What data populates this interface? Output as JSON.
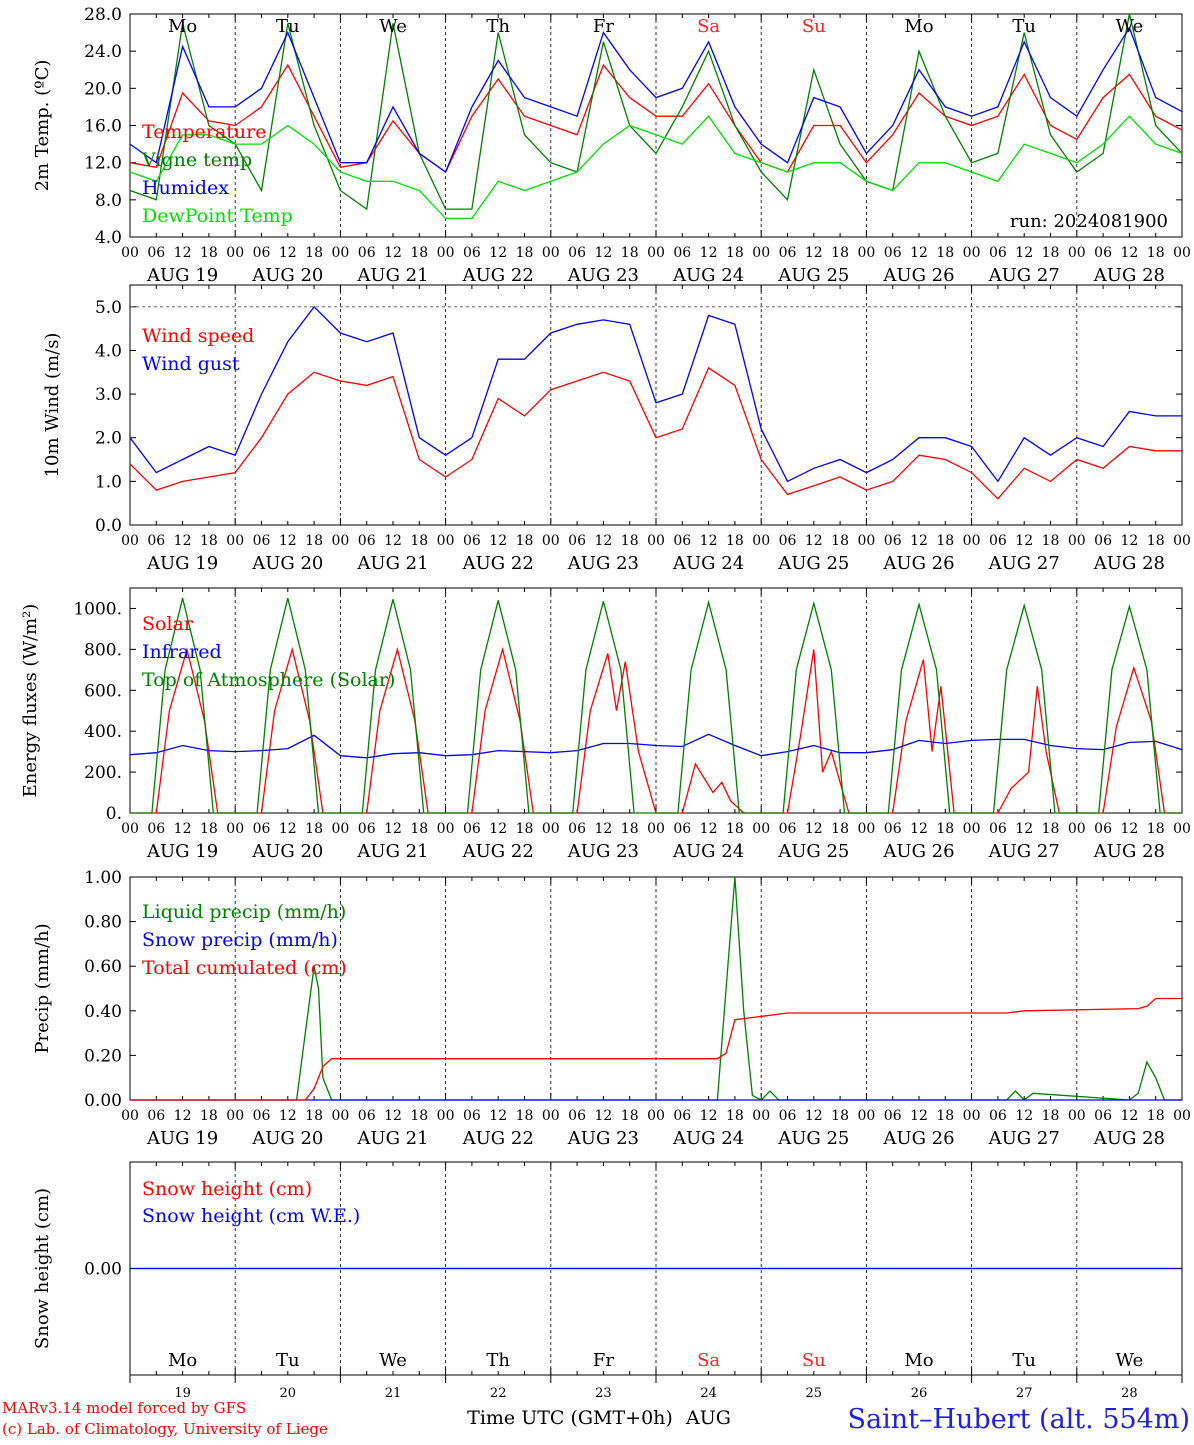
{
  "x_axis": {
    "hour_ticks": [
      "00",
      "06",
      "12",
      "18"
    ],
    "dates": [
      "AUG 19",
      "AUG 20",
      "AUG 21",
      "AUG 22",
      "AUG 23",
      "AUG 24",
      "AUG 25",
      "AUG 26",
      "AUG 27",
      "AUG 28"
    ],
    "weekdays": [
      "Mo",
      "Tu",
      "We",
      "Th",
      "Fr",
      "Sa",
      "Su",
      "Mo",
      "Tu",
      "We"
    ],
    "weekend_color": "#ff2020",
    "weekday_color": "#000000",
    "day_numbers": [
      "19",
      "20",
      "21",
      "22",
      "23",
      "24",
      "25",
      "26",
      "27",
      "28"
    ],
    "month": "AUG",
    "title": "Time UTC (GMT+0h)"
  },
  "footer": {
    "credit_line1": "MARv3.14 model forced by GFS",
    "credit_line2": "(c) Lab. of Climatology, University of Liege",
    "station": "Saint–Hubert (alt. 554m)",
    "credit_color": "#ff0000",
    "station_color": "#2020e0"
  },
  "chart_data": [
    {
      "type": "line",
      "ylabel": "2m Temp. (ºC)",
      "ylim": [
        4.0,
        28.0
      ],
      "yticks": [
        "4.0",
        "8.0",
        "12.0",
        "16.0",
        "20.0",
        "24.0",
        "28.0"
      ],
      "annotation": "run: 2024081900",
      "x_unit": "hours since AUG 19 00 UTC",
      "series": [
        {
          "name": "Temperature",
          "color": "#ff0000",
          "x": [
            0,
            6,
            12,
            18,
            24,
            30,
            36,
            42,
            48,
            54,
            60,
            66,
            72,
            78,
            84,
            90,
            96,
            102,
            108,
            114,
            120,
            126,
            132,
            138,
            144,
            150,
            156,
            162,
            168,
            174,
            180,
            186,
            192,
            198,
            204,
            210,
            216,
            222,
            228,
            234,
            240
          ],
          "y": [
            12,
            11.5,
            19.5,
            16.5,
            16,
            18,
            22.5,
            17,
            11.5,
            12,
            16.5,
            13,
            11,
            17,
            21,
            17,
            16,
            15,
            22.5,
            19,
            17,
            17,
            20.5,
            16,
            12,
            11,
            16,
            16,
            12,
            15,
            19.5,
            17,
            16,
            17,
            21.5,
            16,
            14.5,
            19,
            21.5,
            17,
            15.5
          ]
        },
        {
          "name": "Vigne temp",
          "color": "#008000",
          "x": [
            0,
            6,
            12,
            18,
            24,
            30,
            36,
            42,
            48,
            54,
            60,
            66,
            72,
            78,
            84,
            90,
            96,
            102,
            108,
            114,
            120,
            126,
            132,
            138,
            144,
            150,
            156,
            162,
            168,
            174,
            180,
            186,
            192,
            198,
            204,
            210,
            216,
            222,
            228,
            234,
            240
          ],
          "y": [
            9,
            8,
            27,
            16,
            14,
            9,
            27,
            16,
            9,
            7,
            27,
            13,
            7,
            7,
            26,
            15,
            12,
            11,
            25,
            16,
            13,
            18,
            24,
            16,
            11,
            8,
            22,
            14,
            10,
            9,
            24,
            17,
            12,
            13,
            26,
            15,
            11,
            13,
            28,
            16,
            13
          ]
        },
        {
          "name": "Humidex",
          "color": "#0000ff",
          "x": [
            0,
            6,
            12,
            18,
            24,
            30,
            36,
            42,
            48,
            54,
            60,
            66,
            72,
            78,
            84,
            90,
            96,
            102,
            108,
            114,
            120,
            126,
            132,
            138,
            144,
            150,
            156,
            162,
            168,
            174,
            180,
            186,
            192,
            198,
            204,
            210,
            216,
            222,
            228,
            234,
            240
          ],
          "y": [
            14,
            12,
            24.5,
            18,
            18,
            20,
            26,
            19,
            12,
            12,
            18,
            13,
            11,
            18,
            23,
            19,
            18,
            17,
            26,
            22,
            19,
            20,
            25,
            18,
            14,
            12,
            19,
            18,
            13,
            16,
            22,
            18,
            17,
            18,
            25,
            19,
            17,
            22,
            26.5,
            19,
            17.5
          ]
        },
        {
          "name": "DewPoint Temp",
          "color": "#00e000",
          "x": [
            0,
            6,
            12,
            18,
            24,
            30,
            36,
            42,
            48,
            54,
            60,
            66,
            72,
            78,
            84,
            90,
            96,
            102,
            108,
            114,
            120,
            126,
            132,
            138,
            144,
            150,
            156,
            162,
            168,
            174,
            180,
            186,
            192,
            198,
            204,
            210,
            216,
            222,
            228,
            234,
            240
          ],
          "y": [
            11,
            10,
            15,
            15,
            14,
            14,
            16,
            14,
            11,
            10,
            10,
            9,
            6,
            6,
            10,
            9,
            10,
            11,
            14,
            16,
            15,
            14,
            17,
            13,
            12,
            11,
            12,
            12,
            10,
            9,
            12,
            12,
            11,
            10,
            14,
            13,
            12,
            14,
            17,
            14,
            13
          ]
        }
      ]
    },
    {
      "type": "line",
      "ylabel": "10m Wind (m/s)",
      "ylim": [
        0.0,
        5.5
      ],
      "yticks": [
        "0.0",
        "1.0",
        "2.0",
        "3.0",
        "4.0",
        "5.0"
      ],
      "dashed_reference": 5.0,
      "x_unit": "hours since AUG 19 00 UTC",
      "series": [
        {
          "name": "Wind speed",
          "color": "#ff0000",
          "x": [
            0,
            6,
            12,
            18,
            24,
            30,
            36,
            42,
            48,
            54,
            60,
            66,
            72,
            78,
            84,
            90,
            96,
            102,
            108,
            114,
            120,
            126,
            132,
            138,
            144,
            150,
            156,
            162,
            168,
            174,
            180,
            186,
            192,
            198,
            204,
            210,
            216,
            222,
            228,
            234,
            240
          ],
          "y": [
            1.4,
            0.8,
            1.0,
            1.1,
            1.2,
            2.0,
            3.0,
            3.5,
            3.3,
            3.2,
            3.4,
            1.5,
            1.1,
            1.5,
            2.9,
            2.5,
            3.1,
            3.3,
            3.5,
            3.3,
            2.0,
            2.2,
            3.6,
            3.2,
            1.5,
            0.7,
            0.9,
            1.1,
            0.8,
            1.0,
            1.6,
            1.5,
            1.2,
            0.6,
            1.3,
            1.0,
            1.5,
            1.3,
            1.8,
            1.7,
            1.7
          ]
        },
        {
          "name": "Wind gust",
          "color": "#0000ff",
          "x": [
            0,
            6,
            12,
            18,
            24,
            30,
            36,
            42,
            48,
            54,
            60,
            66,
            72,
            78,
            84,
            90,
            96,
            102,
            108,
            114,
            120,
            126,
            132,
            138,
            144,
            150,
            156,
            162,
            168,
            174,
            180,
            186,
            192,
            198,
            204,
            210,
            216,
            222,
            228,
            234,
            240
          ],
          "y": [
            2.0,
            1.2,
            1.5,
            1.8,
            1.6,
            3.0,
            4.2,
            5.0,
            4.4,
            4.2,
            4.4,
            2.0,
            1.6,
            2.0,
            3.8,
            3.8,
            4.4,
            4.6,
            4.7,
            4.6,
            2.8,
            3.0,
            4.8,
            4.6,
            2.2,
            1.0,
            1.3,
            1.5,
            1.2,
            1.5,
            2.0,
            2.0,
            1.8,
            1.0,
            2.0,
            1.6,
            2.0,
            1.8,
            2.6,
            2.5,
            2.5
          ]
        }
      ]
    },
    {
      "type": "line",
      "ylabel": "Energy fluxes (W/m²)",
      "ylim": [
        0,
        1100
      ],
      "yticks": [
        "0.",
        "200.",
        "400.",
        "600.",
        "800.",
        "1000."
      ],
      "x_unit": "hours since AUG 19 00 UTC",
      "series": [
        {
          "name": "Solar",
          "color": "#ff0000",
          "x": [
            0,
            6,
            9,
            13,
            17,
            20,
            24,
            30,
            33,
            37,
            41,
            44,
            48,
            54,
            57,
            61,
            65,
            68,
            72,
            78,
            81,
            85,
            89,
            92,
            96,
            102,
            105,
            109,
            111,
            113,
            116,
            120,
            126,
            129,
            133,
            135,
            137,
            140,
            144,
            150,
            153,
            156,
            158,
            160,
            164,
            168,
            174,
            177,
            181,
            183,
            185,
            188,
            192,
            198,
            201,
            205,
            207,
            209,
            212,
            216,
            222,
            225,
            229,
            233,
            236,
            240
          ],
          "y": [
            0,
            0,
            500,
            800,
            450,
            0,
            0,
            0,
            500,
            800,
            450,
            0,
            0,
            0,
            500,
            800,
            450,
            0,
            0,
            0,
            500,
            800,
            450,
            0,
            0,
            0,
            500,
            780,
            500,
            740,
            300,
            0,
            0,
            240,
            100,
            150,
            60,
            0,
            0,
            0,
            380,
            800,
            200,
            300,
            0,
            0,
            0,
            450,
            750,
            300,
            620,
            0,
            0,
            0,
            120,
            200,
            620,
            300,
            0,
            0,
            0,
            420,
            710,
            450,
            0,
            0
          ]
        },
        {
          "name": "Infrared",
          "color": "#0000ff",
          "x": [
            0,
            6,
            12,
            18,
            24,
            30,
            36,
            42,
            48,
            54,
            60,
            66,
            72,
            78,
            84,
            90,
            96,
            102,
            108,
            114,
            120,
            126,
            132,
            138,
            144,
            150,
            156,
            162,
            168,
            174,
            180,
            186,
            192,
            198,
            204,
            210,
            216,
            222,
            228,
            234,
            240
          ],
          "y": [
            285,
            295,
            330,
            305,
            300,
            305,
            315,
            380,
            280,
            270,
            290,
            295,
            280,
            285,
            305,
            300,
            295,
            305,
            340,
            340,
            330,
            325,
            385,
            330,
            280,
            300,
            330,
            295,
            295,
            310,
            355,
            340,
            355,
            360,
            360,
            330,
            315,
            310,
            345,
            350,
            310
          ]
        },
        {
          "name": "Top of Atmosphere (Solar)",
          "color": "#008000",
          "x": [
            0,
            5,
            8,
            12,
            16,
            19,
            24,
            29,
            32,
            36,
            40,
            43,
            48,
            53,
            56,
            60,
            64,
            67,
            72,
            77,
            80,
            84,
            88,
            91,
            96,
            101,
            104,
            108,
            112,
            115,
            120,
            125,
            128,
            132,
            136,
            139,
            144,
            149,
            152,
            156,
            160,
            163,
            168,
            173,
            176,
            180,
            184,
            187,
            192,
            197,
            200,
            204,
            208,
            211,
            216,
            221,
            224,
            228,
            232,
            235,
            240
          ],
          "y": [
            0,
            0,
            700,
            1050,
            700,
            0,
            0,
            0,
            700,
            1050,
            700,
            0,
            0,
            0,
            700,
            1045,
            700,
            0,
            0,
            0,
            700,
            1040,
            700,
            0,
            0,
            0,
            700,
            1035,
            700,
            0,
            0,
            0,
            700,
            1030,
            700,
            0,
            0,
            0,
            700,
            1025,
            700,
            0,
            0,
            0,
            700,
            1020,
            700,
            0,
            0,
            0,
            700,
            1015,
            700,
            0,
            0,
            0,
            700,
            1010,
            700,
            0,
            0
          ]
        }
      ]
    },
    {
      "type": "line",
      "ylabel": "Precip (mm/h)",
      "ylim": [
        0.0,
        1.0
      ],
      "yticks": [
        "0.00",
        "0.20",
        "0.40",
        "0.60",
        "0.80",
        "1.00"
      ],
      "x_unit": "hours since AUG 19 00 UTC",
      "series": [
        {
          "name": "Liquid precip (mm/h)",
          "color": "#008000",
          "x": [
            0,
            38,
            40,
            42,
            43,
            44,
            46,
            134,
            136,
            138,
            140,
            142,
            144,
            146,
            148,
            150,
            200,
            202,
            204,
            206,
            228,
            230,
            232,
            234,
            236,
            240
          ],
          "y": [
            0,
            0,
            0.3,
            0.6,
            0.5,
            0.1,
            0,
            0,
            0.5,
            1.0,
            0.4,
            0.02,
            0.0,
            0.04,
            0.0,
            0.0,
            0.0,
            0.04,
            0.0,
            0.03,
            0.0,
            0.03,
            0.17,
            0.1,
            0.0,
            0.0
          ]
        },
        {
          "name": "Snow precip (mm/h)",
          "color": "#0000ff",
          "x": [
            0,
            240
          ],
          "y": [
            0,
            0
          ]
        },
        {
          "name": "Total cumulated (cm)",
          "color": "#ff0000",
          "x": [
            0,
            40,
            42,
            44,
            46,
            134,
            136,
            138,
            144,
            150,
            200,
            204,
            230,
            232,
            234,
            240
          ],
          "y": [
            0,
            0,
            0.05,
            0.15,
            0.185,
            0.185,
            0.21,
            0.36,
            0.375,
            0.39,
            0.39,
            0.4,
            0.41,
            0.42,
            0.455,
            0.455
          ]
        }
      ]
    },
    {
      "type": "line",
      "ylabel": "Snow height (cm)",
      "ylim": [
        -1.0,
        1.0
      ],
      "yticks": [
        "0.00"
      ],
      "x_unit": "hours since AUG 19 00 UTC",
      "series": [
        {
          "name": "Snow height (cm)",
          "color": "#ff0000",
          "x": [
            0,
            240
          ],
          "y": [
            0,
            0
          ]
        },
        {
          "name": "Snow height (cm W.E.)",
          "color": "#0000ff",
          "x": [
            0,
            240
          ],
          "y": [
            0,
            0
          ]
        }
      ]
    }
  ]
}
